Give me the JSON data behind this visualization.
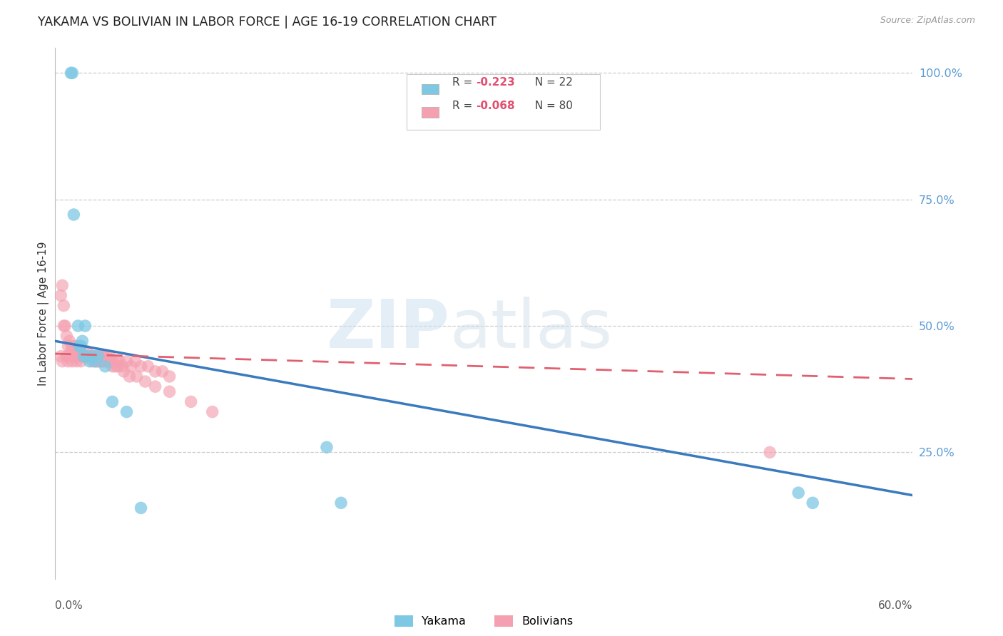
{
  "title": "YAKAMA VS BOLIVIAN IN LABOR FORCE | AGE 16-19 CORRELATION CHART",
  "source": "Source: ZipAtlas.com",
  "ylabel": "In Labor Force | Age 16-19",
  "ytick_labels": [
    "100.0%",
    "75.0%",
    "50.0%",
    "25.0%"
  ],
  "ytick_values": [
    1.0,
    0.75,
    0.5,
    0.25
  ],
  "xmin": 0.0,
  "xmax": 0.6,
  "ymin": 0.0,
  "ymax": 1.05,
  "legend_r_yakama": "R = -0.223",
  "legend_n_yakama": "N = 22",
  "legend_r_bolivian": "R = -0.068",
  "legend_n_bolivian": "N = 80",
  "color_yakama": "#7ec8e3",
  "color_bolivian": "#f4a0b0",
  "color_line_yakama": "#3a7abf",
  "color_line_bolivian": "#e06070",
  "color_ytick": "#5b9bd5",
  "yakama_x": [
    0.011,
    0.012,
    0.013,
    0.016,
    0.017,
    0.018,
    0.019,
    0.02,
    0.021,
    0.022,
    0.024,
    0.026,
    0.028,
    0.03,
    0.035,
    0.04,
    0.05,
    0.06,
    0.19,
    0.2,
    0.52,
    0.53
  ],
  "yakama_y": [
    1.0,
    1.0,
    0.72,
    0.5,
    0.46,
    0.46,
    0.47,
    0.44,
    0.5,
    0.44,
    0.43,
    0.44,
    0.43,
    0.44,
    0.42,
    0.35,
    0.33,
    0.14,
    0.26,
    0.15,
    0.17,
    0.15
  ],
  "bolivian_x": [
    0.004,
    0.005,
    0.006,
    0.007,
    0.008,
    0.009,
    0.01,
    0.011,
    0.012,
    0.013,
    0.014,
    0.014,
    0.015,
    0.016,
    0.017,
    0.018,
    0.019,
    0.02,
    0.021,
    0.022,
    0.023,
    0.024,
    0.025,
    0.026,
    0.027,
    0.028,
    0.029,
    0.03,
    0.031,
    0.032,
    0.033,
    0.034,
    0.035,
    0.036,
    0.037,
    0.038,
    0.039,
    0.04,
    0.042,
    0.043,
    0.045,
    0.047,
    0.05,
    0.053,
    0.056,
    0.06,
    0.065,
    0.07,
    0.075,
    0.08,
    0.004,
    0.005,
    0.006,
    0.008,
    0.009,
    0.01,
    0.012,
    0.013,
    0.015,
    0.016,
    0.018,
    0.02,
    0.022,
    0.024,
    0.026,
    0.028,
    0.03,
    0.033,
    0.036,
    0.04,
    0.044,
    0.048,
    0.052,
    0.057,
    0.063,
    0.07,
    0.08,
    0.095,
    0.11,
    0.5
  ],
  "bolivian_y": [
    0.56,
    0.58,
    0.54,
    0.5,
    0.48,
    0.46,
    0.47,
    0.45,
    0.46,
    0.45,
    0.44,
    0.46,
    0.44,
    0.44,
    0.45,
    0.44,
    0.44,
    0.44,
    0.44,
    0.45,
    0.44,
    0.44,
    0.44,
    0.44,
    0.44,
    0.43,
    0.44,
    0.43,
    0.44,
    0.43,
    0.43,
    0.44,
    0.43,
    0.44,
    0.43,
    0.44,
    0.43,
    0.43,
    0.42,
    0.43,
    0.43,
    0.42,
    0.43,
    0.42,
    0.43,
    0.42,
    0.42,
    0.41,
    0.41,
    0.4,
    0.44,
    0.43,
    0.5,
    0.44,
    0.43,
    0.44,
    0.43,
    0.44,
    0.43,
    0.44,
    0.43,
    0.44,
    0.44,
    0.44,
    0.43,
    0.44,
    0.43,
    0.43,
    0.43,
    0.42,
    0.42,
    0.41,
    0.4,
    0.4,
    0.39,
    0.38,
    0.37,
    0.35,
    0.33,
    0.25
  ],
  "line_yakama_x0": 0.0,
  "line_yakama_y0": 0.47,
  "line_yakama_x1": 0.6,
  "line_yakama_y1": 0.165,
  "line_bolivian_x0": 0.0,
  "line_bolivian_y0": 0.445,
  "line_bolivian_x1": 0.6,
  "line_bolivian_y1": 0.395
}
